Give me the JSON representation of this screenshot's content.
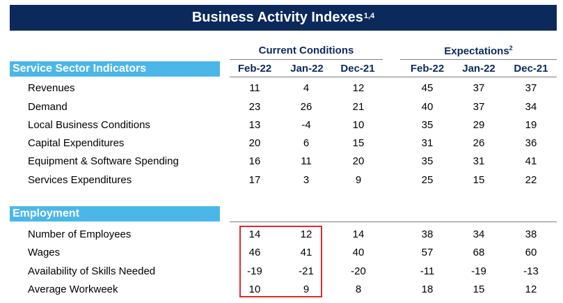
{
  "title": {
    "text": "Business Activity Indexes",
    "sup": "1,4"
  },
  "groups": {
    "current": {
      "label": "Current Conditions",
      "sup": ""
    },
    "expect": {
      "label": "Expectations",
      "sup": "2"
    }
  },
  "columns": [
    "Feb-22",
    "Jan-22",
    "Dec-21",
    "Feb-22",
    "Jan-22",
    "Dec-21"
  ],
  "sections": [
    {
      "header": "Service Sector Indicators",
      "rows": [
        {
          "label": "Revenues",
          "values": [
            "11",
            "4",
            "12",
            "45",
            "37",
            "37"
          ]
        },
        {
          "label": "Demand",
          "values": [
            "23",
            "26",
            "21",
            "40",
            "37",
            "34"
          ]
        },
        {
          "label": "Local Business Conditions",
          "values": [
            "13",
            "-4",
            "10",
            "35",
            "29",
            "19"
          ]
        },
        {
          "label": "Capital Expenditures",
          "values": [
            "20",
            "6",
            "15",
            "31",
            "26",
            "36"
          ]
        },
        {
          "label": "Equipment & Software Spending",
          "values": [
            "16",
            "11",
            "20",
            "35",
            "31",
            "41"
          ]
        },
        {
          "label": "Services Expenditures",
          "values": [
            "17",
            "3",
            "9",
            "25",
            "15",
            "22"
          ]
        }
      ]
    },
    {
      "header": "Employment",
      "rows": [
        {
          "label": "Number of Employees",
          "values": [
            "14",
            "12",
            "14",
            "38",
            "34",
            "38"
          ]
        },
        {
          "label": "Wages",
          "values": [
            "46",
            "41",
            "40",
            "57",
            "68",
            "60"
          ]
        },
        {
          "label": "Availability of Skills Needed",
          "values": [
            "-19",
            "-21",
            "-20",
            "-11",
            "-19",
            "-13"
          ]
        },
        {
          "label": "Average Workweek",
          "values": [
            "10",
            "9",
            "8",
            "18",
            "15",
            "12"
          ]
        }
      ]
    }
  ],
  "colors": {
    "title_bg": "#0b2a5b",
    "section_bg": "#4bb7e8",
    "highlight_border": "#e0282e"
  }
}
